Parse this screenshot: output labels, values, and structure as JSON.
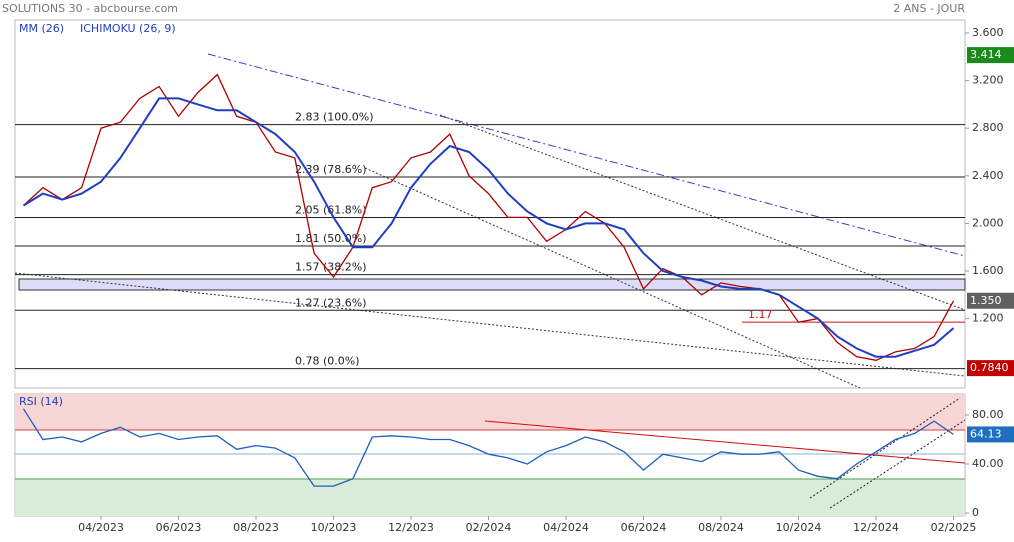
{
  "header": {
    "title": "SOLUTIONS 30 - abcbourse.com",
    "period": "2 ANS - JOUR"
  },
  "chart_data": [
    {
      "type": "line",
      "legend": [
        "MM (26)",
        "ICHIMOKU (26, 9)"
      ],
      "ylim": [
        0.617,
        3.709
      ],
      "yticks": [
        {
          "value": 3.6,
          "label": "3.600"
        },
        {
          "value": 3.2,
          "label": "3.200"
        },
        {
          "value": 2.8,
          "label": "2.800"
        },
        {
          "value": 2.4,
          "label": "2.400"
        },
        {
          "value": 2.0,
          "label": "2.000"
        },
        {
          "value": 1.6,
          "label": "1.600"
        },
        {
          "value": 1.2,
          "label": "1.200"
        }
      ],
      "series": [
        {
          "color": "#b00000",
          "values": [
            2.15,
            2.3,
            2.2,
            2.3,
            2.8,
            2.85,
            3.05,
            3.15,
            2.9,
            3.1,
            3.25,
            2.9,
            2.85,
            2.6,
            2.55,
            1.75,
            1.55,
            1.8,
            2.3,
            2.35,
            2.55,
            2.6,
            2.75,
            2.4,
            2.25,
            2.05,
            2.05,
            1.85,
            1.95,
            2.1,
            2.0,
            1.8,
            1.45,
            1.62,
            1.55,
            1.4,
            1.5,
            1.47,
            1.45,
            1.4,
            1.17,
            1.2,
            1.0,
            0.88,
            0.85,
            0.92,
            0.95,
            1.05,
            1.35
          ]
        },
        {
          "name": "MM (26)",
          "color": "#1f3fbf",
          "values": [
            2.15,
            2.25,
            2.2,
            2.25,
            2.35,
            2.55,
            2.8,
            3.05,
            3.05,
            3.0,
            2.95,
            2.95,
            2.85,
            2.75,
            2.6,
            2.35,
            2.05,
            1.8,
            1.8,
            2.0,
            2.3,
            2.5,
            2.65,
            2.6,
            2.45,
            2.25,
            2.1,
            2.0,
            1.95,
            2.0,
            2.0,
            1.95,
            1.75,
            1.6,
            1.55,
            1.52,
            1.47,
            1.45,
            1.45,
            1.4,
            1.3,
            1.2,
            1.05,
            0.95,
            0.88,
            0.88,
            0.93,
            0.98,
            1.12
          ]
        }
      ],
      "levels": [
        {
          "value": 2.83,
          "label": "2.83 (100.0%)",
          "color": "#222"
        },
        {
          "value": 2.39,
          "label": "2.39 (78.6%)",
          "color": "#222"
        },
        {
          "value": 2.05,
          "label": "2.05 (61.8%)",
          "color": "#222"
        },
        {
          "value": 1.81,
          "label": "1.81 (50.0%)",
          "color": "#222"
        },
        {
          "value": 1.57,
          "label": "1.57 (38.2%)",
          "color": "#222"
        },
        {
          "value": 1.27,
          "label": "1.27 (23.6%)",
          "color": "#222"
        },
        {
          "value": 0.78,
          "label": "0.78 (0.0%)",
          "color": "#222"
        },
        {
          "value": 1.17,
          "label": "1.17",
          "color": "#d01010"
        }
      ],
      "markers": [
        {
          "value": 3.414,
          "label": "3.414",
          "color": "#1a8a1a"
        },
        {
          "value": 1.35,
          "label": "1.350",
          "color": "#606060"
        },
        {
          "value": 0.784,
          "label": "0.7840",
          "color": "#c00000"
        }
      ]
    },
    {
      "type": "line",
      "legend": [
        "RSI (14)"
      ],
      "categories": [
        null,
        null,
        null,
        null,
        "04/2023",
        null,
        null,
        null,
        "06/2023",
        null,
        null,
        null,
        "08/2023",
        null,
        null,
        null,
        "10/2023",
        null,
        null,
        null,
        "12/2023",
        null,
        null,
        null,
        "02/2024",
        null,
        null,
        null,
        "04/2024",
        null,
        null,
        null,
        "06/2024",
        null,
        null,
        null,
        "08/2024",
        null,
        null,
        null,
        "10/2024",
        null,
        null,
        null,
        "12/2024",
        null,
        null,
        null,
        "02/2025"
      ],
      "ylim": [
        -2.4,
        97.1
      ],
      "yticks": [
        {
          "value": 80,
          "label": "80.00"
        },
        {
          "value": 40,
          "label": "40.00"
        },
        0
      ],
      "series": [
        {
          "color": "#1f5fbf",
          "values": [
            85,
            60,
            62,
            58,
            65,
            70,
            62,
            65,
            60,
            62,
            63,
            52,
            55,
            53,
            45,
            22,
            22,
            28,
            62,
            63,
            62,
            60,
            60,
            55,
            48,
            45,
            40,
            50,
            55,
            62,
            58,
            50,
            35,
            48,
            45,
            42,
            50,
            48,
            48,
            50,
            35,
            30,
            28,
            40,
            50,
            60,
            65,
            75,
            64.13
          ]
        }
      ],
      "markers": [
        {
          "value": 64.13,
          "label": "64.13",
          "color": "#1f6fbf"
        }
      ]
    }
  ]
}
